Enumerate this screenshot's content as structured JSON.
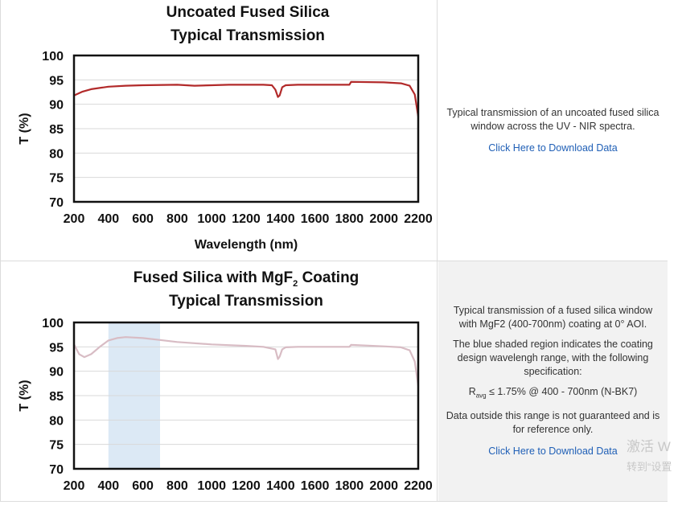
{
  "chart_data": [
    {
      "type": "line",
      "title": "Uncoated Fused Silica",
      "subtitle": "Typical Transmission",
      "xlabel": "Wavelength (nm)",
      "ylabel": "T (%)",
      "xlim": [
        200,
        2200
      ],
      "ylim": [
        70,
        100
      ],
      "xticks": [
        "200",
        "400",
        "600",
        "800",
        "1000",
        "1200",
        "1400",
        "1600",
        "1800",
        "2000",
        "2200"
      ],
      "yticks": [
        "100",
        "95",
        "90",
        "85",
        "80",
        "75",
        "70"
      ],
      "grid": true,
      "series": [
        {
          "color": "#b22a2a",
          "x": [
            200,
            250,
            300,
            400,
            500,
            600,
            800,
            900,
            1000,
            1100,
            1200,
            1300,
            1350,
            1370,
            1385,
            1395,
            1410,
            1430,
            1500,
            1700,
            1800,
            1810,
            2000,
            2100,
            2150,
            2180,
            2200
          ],
          "y": [
            91.8,
            92.6,
            93.1,
            93.6,
            93.8,
            93.9,
            94.0,
            93.8,
            93.9,
            94.0,
            94.0,
            94.0,
            93.9,
            93.0,
            91.5,
            91.8,
            93.5,
            93.9,
            94.0,
            94.0,
            94.0,
            94.6,
            94.5,
            94.3,
            93.8,
            92.0,
            87.5
          ]
        }
      ]
    },
    {
      "type": "line",
      "title": "Fused Silica with MgF",
      "title_sub": "2",
      "title_end": " Coating",
      "subtitle": "Typical Transmission",
      "ylabel": "T (%)",
      "xlim": [
        200,
        2200
      ],
      "ylim": [
        70,
        100
      ],
      "xticks": [
        "200",
        "400",
        "600",
        "800",
        "1000",
        "1200",
        "1400",
        "1600",
        "1800",
        "2000",
        "2200"
      ],
      "yticks": [
        "100",
        "95",
        "90",
        "85",
        "80",
        "75",
        "70"
      ],
      "grid": true,
      "shaded_region": {
        "x": [
          400,
          700
        ],
        "color": "#dce9f5"
      },
      "series": [
        {
          "color": "#d8bcc4",
          "x": [
            200,
            230,
            260,
            300,
            350,
            400,
            450,
            500,
            600,
            700,
            800,
            1000,
            1200,
            1300,
            1370,
            1385,
            1395,
            1410,
            1430,
            1500,
            1700,
            1800,
            1810,
            2000,
            2100,
            2150,
            2180,
            2200
          ],
          "y": [
            95.5,
            93.5,
            92.9,
            93.5,
            95.0,
            96.3,
            96.8,
            97.0,
            96.8,
            96.4,
            96.0,
            95.5,
            95.2,
            95.0,
            94.5,
            92.5,
            93.0,
            94.5,
            94.9,
            95.0,
            95.0,
            95.0,
            95.4,
            95.1,
            94.9,
            94.3,
            92.0,
            87.0
          ]
        }
      ]
    }
  ],
  "panels": [
    {
      "description": "Typical transmission of an uncoated fused silica window across the UV - NIR spectra.",
      "link": "Click Here to Download Data"
    },
    {
      "description": "Typical transmission of a fused silica window with MgF2 (400-700nm) coating at 0° AOI.",
      "note": "The blue shaded region indicates the coating design wavelengh range, with the following specification:",
      "spec_prefix": "R",
      "spec_sub": "avg",
      "spec_rest": " ≤ 1.75% @ 400 - 700nm (N-BK7)",
      "disclaimer": "Data outside this range is not guaranteed and is for reference only.",
      "link": "Click Here to Download Data"
    }
  ],
  "watermark": {
    "line1": "激活 W",
    "line2": "转到“设置"
  }
}
